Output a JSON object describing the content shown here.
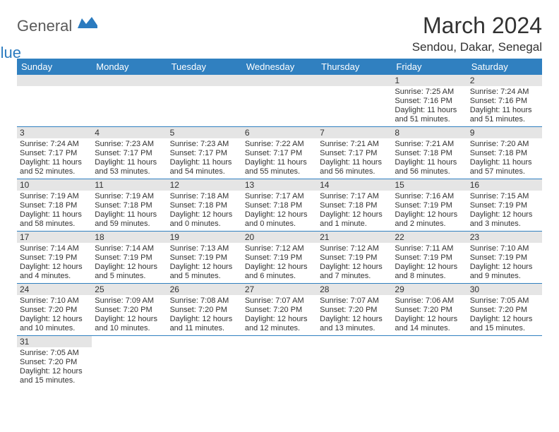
{
  "logo": {
    "text1": "General",
    "text2": "Blue"
  },
  "title": "March 2024",
  "subtitle": "Sendou, Dakar, Senegal",
  "colors": {
    "header_bg": "#3080c0",
    "header_text": "#ffffff",
    "daynum_bg": "#e5e5e5",
    "border": "#3080c0",
    "text": "#323232",
    "logo_gray": "#5a5a5a",
    "logo_blue": "#2b7bbf"
  },
  "weekdays": [
    "Sunday",
    "Monday",
    "Tuesday",
    "Wednesday",
    "Thursday",
    "Friday",
    "Saturday"
  ],
  "cells": [
    [
      null,
      null,
      null,
      null,
      null,
      {
        "n": "1",
        "sr": "7:25 AM",
        "ss": "7:16 PM",
        "dl": "11 hours and 51 minutes."
      },
      {
        "n": "2",
        "sr": "7:24 AM",
        "ss": "7:16 PM",
        "dl": "11 hours and 51 minutes."
      }
    ],
    [
      {
        "n": "3",
        "sr": "7:24 AM",
        "ss": "7:17 PM",
        "dl": "11 hours and 52 minutes."
      },
      {
        "n": "4",
        "sr": "7:23 AM",
        "ss": "7:17 PM",
        "dl": "11 hours and 53 minutes."
      },
      {
        "n": "5",
        "sr": "7:23 AM",
        "ss": "7:17 PM",
        "dl": "11 hours and 54 minutes."
      },
      {
        "n": "6",
        "sr": "7:22 AM",
        "ss": "7:17 PM",
        "dl": "11 hours and 55 minutes."
      },
      {
        "n": "7",
        "sr": "7:21 AM",
        "ss": "7:17 PM",
        "dl": "11 hours and 56 minutes."
      },
      {
        "n": "8",
        "sr": "7:21 AM",
        "ss": "7:18 PM",
        "dl": "11 hours and 56 minutes."
      },
      {
        "n": "9",
        "sr": "7:20 AM",
        "ss": "7:18 PM",
        "dl": "11 hours and 57 minutes."
      }
    ],
    [
      {
        "n": "10",
        "sr": "7:19 AM",
        "ss": "7:18 PM",
        "dl": "11 hours and 58 minutes."
      },
      {
        "n": "11",
        "sr": "7:19 AM",
        "ss": "7:18 PM",
        "dl": "11 hours and 59 minutes."
      },
      {
        "n": "12",
        "sr": "7:18 AM",
        "ss": "7:18 PM",
        "dl": "12 hours and 0 minutes."
      },
      {
        "n": "13",
        "sr": "7:17 AM",
        "ss": "7:18 PM",
        "dl": "12 hours and 0 minutes."
      },
      {
        "n": "14",
        "sr": "7:17 AM",
        "ss": "7:18 PM",
        "dl": "12 hours and 1 minute."
      },
      {
        "n": "15",
        "sr": "7:16 AM",
        "ss": "7:19 PM",
        "dl": "12 hours and 2 minutes."
      },
      {
        "n": "16",
        "sr": "7:15 AM",
        "ss": "7:19 PM",
        "dl": "12 hours and 3 minutes."
      }
    ],
    [
      {
        "n": "17",
        "sr": "7:14 AM",
        "ss": "7:19 PM",
        "dl": "12 hours and 4 minutes."
      },
      {
        "n": "18",
        "sr": "7:14 AM",
        "ss": "7:19 PM",
        "dl": "12 hours and 5 minutes."
      },
      {
        "n": "19",
        "sr": "7:13 AM",
        "ss": "7:19 PM",
        "dl": "12 hours and 5 minutes."
      },
      {
        "n": "20",
        "sr": "7:12 AM",
        "ss": "7:19 PM",
        "dl": "12 hours and 6 minutes."
      },
      {
        "n": "21",
        "sr": "7:12 AM",
        "ss": "7:19 PM",
        "dl": "12 hours and 7 minutes."
      },
      {
        "n": "22",
        "sr": "7:11 AM",
        "ss": "7:19 PM",
        "dl": "12 hours and 8 minutes."
      },
      {
        "n": "23",
        "sr": "7:10 AM",
        "ss": "7:19 PM",
        "dl": "12 hours and 9 minutes."
      }
    ],
    [
      {
        "n": "24",
        "sr": "7:10 AM",
        "ss": "7:20 PM",
        "dl": "12 hours and 10 minutes."
      },
      {
        "n": "25",
        "sr": "7:09 AM",
        "ss": "7:20 PM",
        "dl": "12 hours and 10 minutes."
      },
      {
        "n": "26",
        "sr": "7:08 AM",
        "ss": "7:20 PM",
        "dl": "12 hours and 11 minutes."
      },
      {
        "n": "27",
        "sr": "7:07 AM",
        "ss": "7:20 PM",
        "dl": "12 hours and 12 minutes."
      },
      {
        "n": "28",
        "sr": "7:07 AM",
        "ss": "7:20 PM",
        "dl": "12 hours and 13 minutes."
      },
      {
        "n": "29",
        "sr": "7:06 AM",
        "ss": "7:20 PM",
        "dl": "12 hours and 14 minutes."
      },
      {
        "n": "30",
        "sr": "7:05 AM",
        "ss": "7:20 PM",
        "dl": "12 hours and 15 minutes."
      }
    ],
    [
      {
        "n": "31",
        "sr": "7:05 AM",
        "ss": "7:20 PM",
        "dl": "12 hours and 15 minutes."
      },
      null,
      null,
      null,
      null,
      null,
      null
    ]
  ],
  "labels": {
    "sunrise": "Sunrise:",
    "sunset": "Sunset:",
    "daylight": "Daylight:"
  }
}
